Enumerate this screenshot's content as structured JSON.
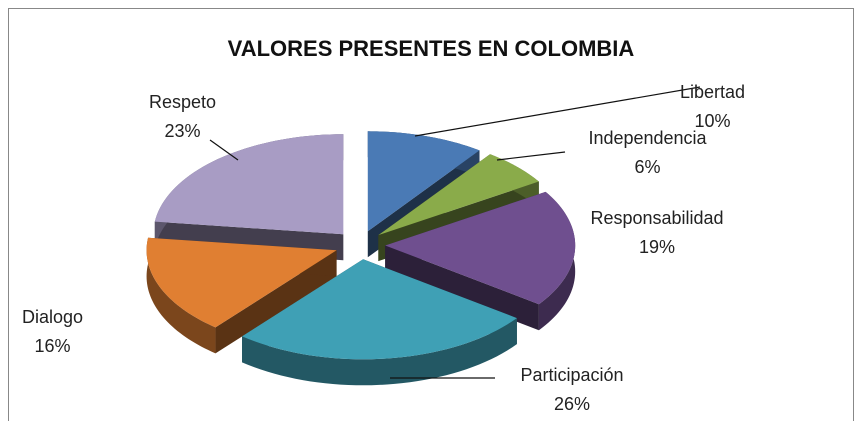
{
  "chart_data": {
    "type": "pie",
    "title": "VALORES PRESENTES EN COLOMBIA",
    "categories": [
      "Libertad",
      "Independencia",
      "Responsabilidad",
      "Participación",
      "Dialogo",
      "Respeto"
    ],
    "values": [
      10,
      6,
      19,
      26,
      16,
      23
    ],
    "value_labels": [
      "10%",
      "6%",
      "19%",
      "26%",
      "16%",
      "23%"
    ],
    "colors": [
      "#4a7ab5",
      "#8aab4a",
      "#6f4f8f",
      "#3fa0b5",
      "#e07f32",
      "#a89cc4"
    ]
  }
}
